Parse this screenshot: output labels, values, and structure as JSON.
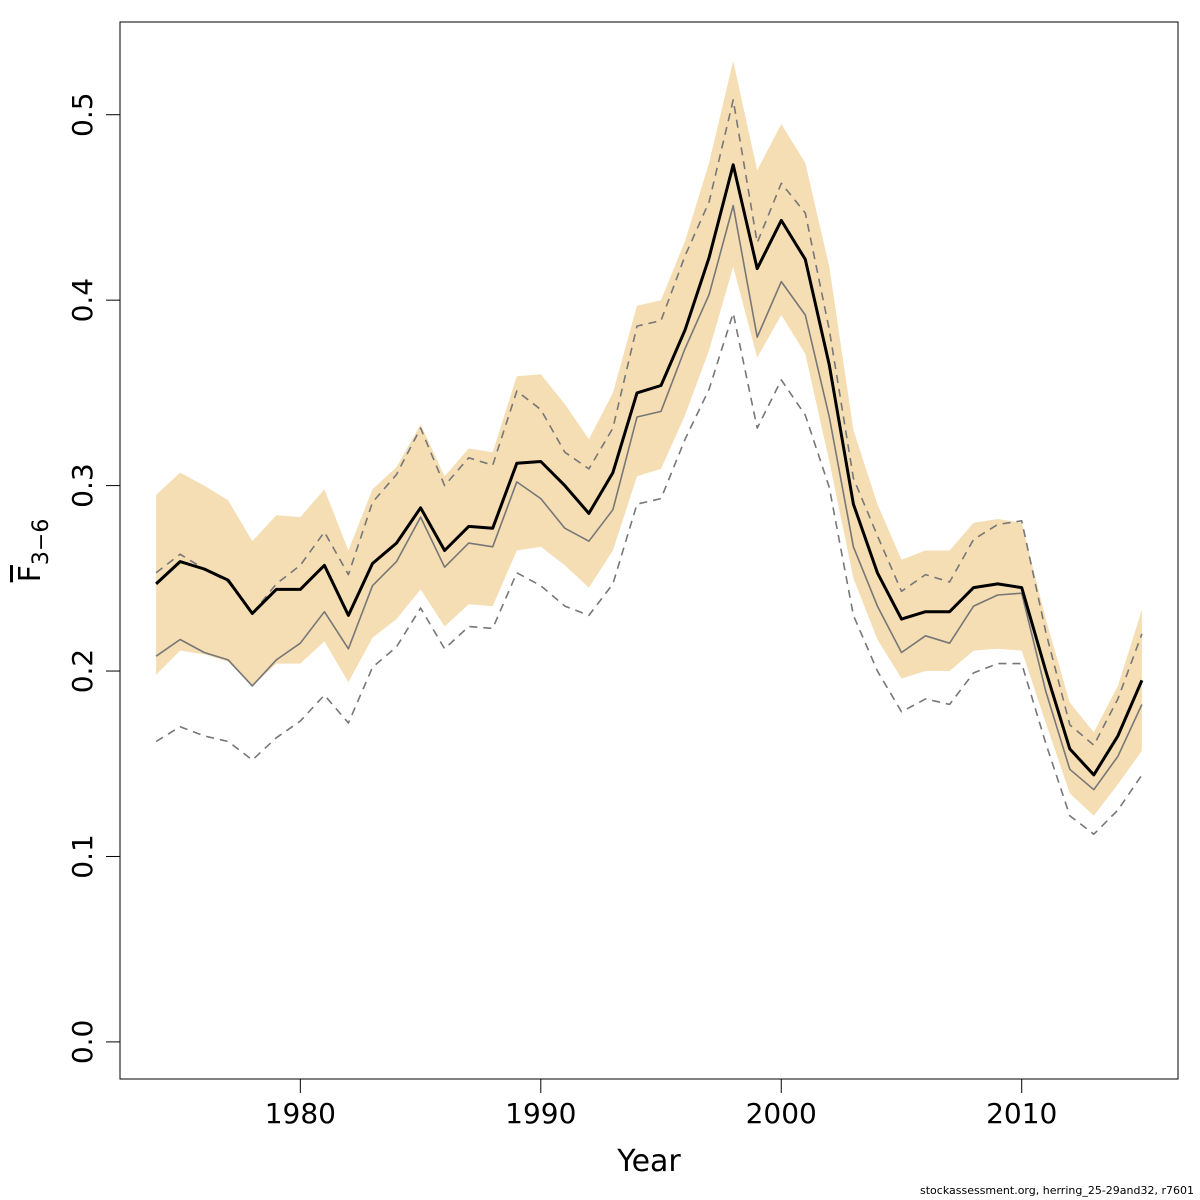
{
  "footer_text": "stockassessment.org, herring_25-29and32, r7601",
  "chart_data": {
    "type": "line",
    "xlabel": "Year",
    "ylabel_main": "F",
    "ylabel_sub": "3−6",
    "xlim": [
      1972.5,
      2016.5
    ],
    "ylim": [
      -0.02,
      0.55
    ],
    "xticks": [
      1980,
      1990,
      2000,
      2010
    ],
    "yticks": [
      0.0,
      0.1,
      0.2,
      0.3,
      0.4,
      0.5
    ],
    "ytick_labels": [
      "0.0",
      "0.1",
      "0.2",
      "0.3",
      "0.4",
      "0.5"
    ],
    "band_color": "#f5deb3",
    "x": [
      1974,
      1975,
      1976,
      1977,
      1978,
      1979,
      1980,
      1981,
      1982,
      1983,
      1984,
      1985,
      1986,
      1987,
      1988,
      1989,
      1990,
      1991,
      1992,
      1993,
      1994,
      1995,
      1996,
      1997,
      1998,
      1999,
      2000,
      2001,
      2002,
      2003,
      2004,
      2005,
      2006,
      2007,
      2008,
      2009,
      2010,
      2011,
      2012,
      2013,
      2014,
      2015
    ],
    "series": [
      {
        "role": "estimate",
        "style": "solid-thick",
        "color": "#000000",
        "values": [
          0.247,
          0.259,
          0.255,
          0.249,
          0.231,
          0.244,
          0.244,
          0.257,
          0.23,
          0.258,
          0.269,
          0.288,
          0.265,
          0.278,
          0.277,
          0.312,
          0.313,
          0.3,
          0.285,
          0.307,
          0.35,
          0.354,
          0.384,
          0.423,
          0.473,
          0.417,
          0.443,
          0.422,
          0.365,
          0.29,
          0.253,
          0.228,
          0.232,
          0.232,
          0.245,
          0.247,
          0.245,
          0.2,
          0.158,
          0.144,
          0.165,
          0.195
        ]
      },
      {
        "role": "confidence-upper",
        "style": "band-upper",
        "values": [
          0.295,
          0.307,
          0.3,
          0.292,
          0.27,
          0.284,
          0.283,
          0.298,
          0.265,
          0.298,
          0.31,
          0.333,
          0.305,
          0.32,
          0.318,
          0.359,
          0.36,
          0.344,
          0.325,
          0.35,
          0.397,
          0.4,
          0.432,
          0.474,
          0.529,
          0.47,
          0.495,
          0.474,
          0.418,
          0.33,
          0.29,
          0.26,
          0.265,
          0.265,
          0.28,
          0.282,
          0.28,
          0.228,
          0.183,
          0.167,
          0.192,
          0.233
        ]
      },
      {
        "role": "confidence-lower",
        "style": "band-lower",
        "values": [
          0.198,
          0.211,
          0.209,
          0.205,
          0.192,
          0.204,
          0.204,
          0.216,
          0.194,
          0.218,
          0.228,
          0.244,
          0.224,
          0.236,
          0.235,
          0.265,
          0.267,
          0.257,
          0.245,
          0.265,
          0.305,
          0.309,
          0.338,
          0.373,
          0.418,
          0.369,
          0.392,
          0.371,
          0.313,
          0.25,
          0.217,
          0.196,
          0.2,
          0.2,
          0.211,
          0.212,
          0.211,
          0.172,
          0.134,
          0.122,
          0.139,
          0.157
        ]
      },
      {
        "role": "reference-upper",
        "style": "dashed",
        "color": "#777777",
        "values": [
          0.253,
          0.263,
          0.255,
          0.248,
          0.231,
          0.247,
          0.257,
          0.275,
          0.252,
          0.291,
          0.306,
          0.331,
          0.3,
          0.315,
          0.311,
          0.351,
          0.341,
          0.318,
          0.309,
          0.331,
          0.386,
          0.389,
          0.424,
          0.453,
          0.508,
          0.431,
          0.463,
          0.447,
          0.384,
          0.304,
          0.273,
          0.243,
          0.252,
          0.248,
          0.271,
          0.279,
          0.281,
          0.221,
          0.171,
          0.16,
          0.185,
          0.22
        ]
      },
      {
        "role": "reference-mid",
        "style": "solid-thin",
        "color": "#777777",
        "values": [
          0.208,
          0.217,
          0.21,
          0.206,
          0.192,
          0.206,
          0.215,
          0.232,
          0.212,
          0.246,
          0.259,
          0.283,
          0.256,
          0.269,
          0.267,
          0.302,
          0.293,
          0.277,
          0.27,
          0.287,
          0.337,
          0.34,
          0.374,
          0.403,
          0.451,
          0.38,
          0.41,
          0.392,
          0.337,
          0.267,
          0.235,
          0.21,
          0.219,
          0.215,
          0.235,
          0.241,
          0.242,
          0.189,
          0.147,
          0.136,
          0.154,
          0.182
        ]
      },
      {
        "role": "reference-lower",
        "style": "dashed",
        "color": "#777777",
        "values": [
          0.162,
          0.17,
          0.165,
          0.162,
          0.152,
          0.164,
          0.173,
          0.187,
          0.172,
          0.202,
          0.213,
          0.234,
          0.212,
          0.224,
          0.223,
          0.253,
          0.246,
          0.235,
          0.23,
          0.247,
          0.29,
          0.293,
          0.325,
          0.352,
          0.393,
          0.331,
          0.357,
          0.338,
          0.299,
          0.23,
          0.2,
          0.178,
          0.185,
          0.182,
          0.199,
          0.204,
          0.204,
          0.161,
          0.122,
          0.112,
          0.125,
          0.144
        ]
      }
    ]
  }
}
